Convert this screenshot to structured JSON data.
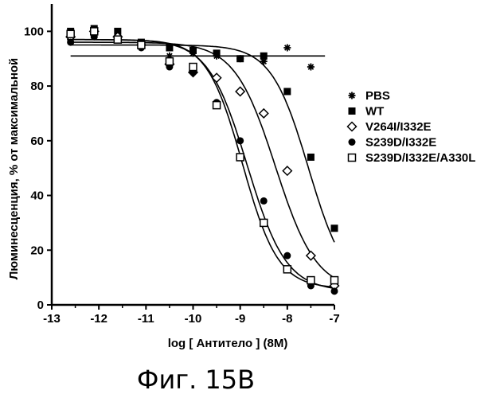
{
  "figure_caption": "Фиг. 15B",
  "chart_data": {
    "type": "scatter",
    "xlabel": "log [ Антитело ] (8M)",
    "ylabel": "Люминесценция, % от максимальной",
    "xlim": [
      -13,
      -7
    ],
    "ylim": [
      0,
      110
    ],
    "xticks": [
      -13,
      -12,
      -11,
      -10,
      -9,
      -8,
      -7
    ],
    "yticks": [
      0,
      20,
      40,
      60,
      80,
      100
    ],
    "grid": false,
    "legend_position": "right",
    "series": [
      {
        "name": "PBS",
        "marker": "asterisk",
        "x": [
          -12.6,
          -12.1,
          -11.6,
          -11.1,
          -10.5,
          -10.0,
          -9.5,
          -9.0,
          -8.5,
          -8.0,
          -7.5
        ],
        "y": [
          97,
          99,
          98,
          95,
          91,
          92,
          91,
          90,
          89,
          94,
          87
        ],
        "fit": "flat",
        "fit_y": 91
      },
      {
        "name": "WT",
        "marker": "square-filled",
        "x": [
          -12.6,
          -12.1,
          -11.6,
          -11.1,
          -10.5,
          -10.0,
          -9.5,
          -9.0,
          -8.5,
          -8.0,
          -7.5,
          -7.0
        ],
        "y": [
          100,
          101,
          100,
          96,
          94,
          93,
          92,
          90,
          91,
          78,
          54,
          28
        ],
        "fit": "sigmoid",
        "fit_params": {
          "top": 95,
          "bottom": 5,
          "logEC50": -7.55,
          "hill": 1.1
        }
      },
      {
        "name": "V264I/I332E",
        "marker": "diamond-open",
        "x": [
          -12.6,
          -12.1,
          -11.6,
          -11.1,
          -10.5,
          -10.0,
          -9.5,
          -9.0,
          -8.5,
          -8.0,
          -7.5,
          -7.0
        ],
        "y": [
          98,
          100,
          98,
          95,
          88,
          85,
          83,
          78,
          70,
          49,
          18,
          7
        ],
        "fit": "sigmoid",
        "fit_params": {
          "top": 96,
          "bottom": 5,
          "logEC50": -8.25,
          "hill": 1.0
        }
      },
      {
        "name": "S239D/I332E",
        "marker": "circle-filled",
        "x": [
          -12.6,
          -12.1,
          -11.6,
          -11.1,
          -10.5,
          -10.0,
          -9.5,
          -9.0,
          -8.5,
          -8.0,
          -7.5,
          -7.0
        ],
        "y": [
          96,
          98,
          97,
          94,
          87,
          85,
          74,
          60,
          38,
          18,
          7,
          5
        ],
        "fit": "sigmoid",
        "fit_params": {
          "top": 97,
          "bottom": 5,
          "logEC50": -8.85,
          "hill": 1.05
        }
      },
      {
        "name": "S239D/I332E/A330L",
        "marker": "square-open",
        "x": [
          -12.6,
          -12.1,
          -11.6,
          -11.1,
          -10.5,
          -10.0,
          -9.5,
          -9.0,
          -8.5,
          -8.0,
          -7.5,
          -7.0
        ],
        "y": [
          99,
          100,
          97,
          95,
          89,
          87,
          73,
          54,
          30,
          13,
          9,
          9
        ],
        "fit": "sigmoid",
        "fit_params": {
          "top": 97,
          "bottom": 6,
          "logEC50": -8.95,
          "hill": 1.15
        }
      }
    ]
  }
}
